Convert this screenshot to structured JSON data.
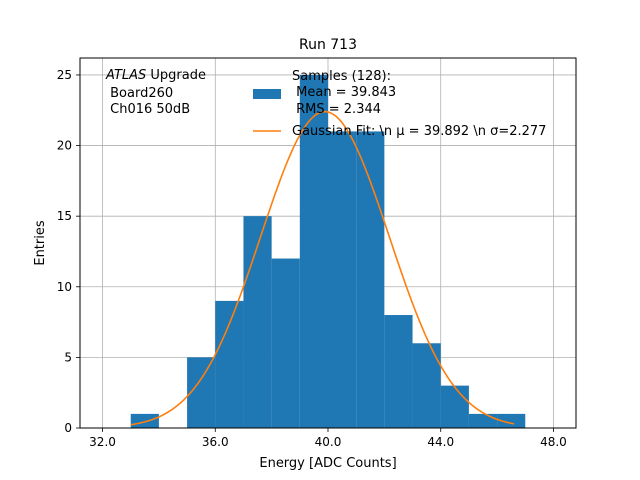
{
  "chart_data": {
    "type": "bar",
    "title": "Run 713",
    "xlabel": "Energy [ADC Counts]",
    "ylabel": "Entries",
    "xlim": [
      31.2,
      48.8
    ],
    "ylim": [
      0,
      26.2
    ],
    "xticks": [
      32,
      36,
      40,
      44,
      48
    ],
    "xtick_labels": [
      "32.0",
      "36.0",
      "40.0",
      "44.0",
      "48.0"
    ],
    "yticks": [
      0,
      5,
      10,
      15,
      20,
      25
    ],
    "ytick_labels": [
      "0",
      "5",
      "10",
      "15",
      "20",
      "25"
    ],
    "grid": true,
    "histogram": {
      "bin_edges": [
        33,
        34,
        35,
        36,
        37,
        38,
        39,
        40,
        41,
        42,
        43,
        44,
        45,
        46,
        47
      ],
      "counts": [
        1,
        0,
        5,
        9,
        15,
        12,
        25,
        21,
        21,
        8,
        6,
        3,
        1,
        1
      ],
      "color": "#1f77b4"
    },
    "fit": {
      "type": "gaussian",
      "mu": 39.892,
      "sigma": 2.277,
      "amplitude": 22.4,
      "x_start": 33.0,
      "x_end": 46.6,
      "color": "#ff7f0e"
    },
    "annotation": {
      "italic_part": "ATLAS",
      "rest_line1": " Upgrade",
      "line2": " Board260",
      "line3": " Ch016 50dB"
    },
    "legend": {
      "placement": "top-center",
      "entries": [
        {
          "label_lines": [
            "Samples (128):",
            " Mean = 39.843",
            " RMS = 2.344"
          ],
          "kind": "patch",
          "color": "#1f77b4"
        },
        {
          "label_lines": [
            "Gaussian Fit: \\n μ = 39.892 \\n σ=2.277"
          ],
          "kind": "line",
          "color": "#ff7f0e"
        }
      ]
    }
  }
}
